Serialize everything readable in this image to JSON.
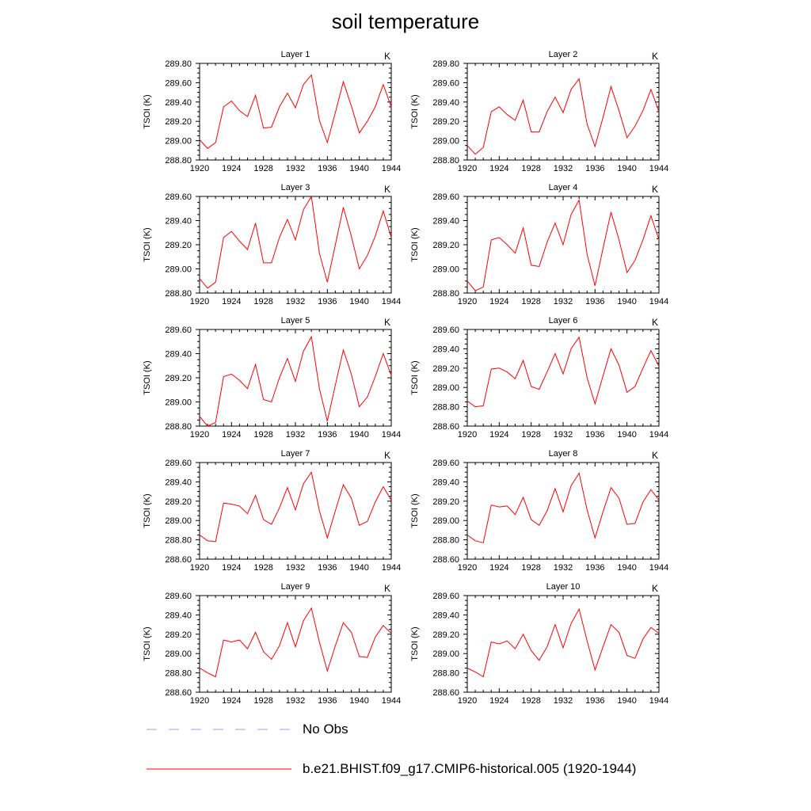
{
  "title": "soil temperature",
  "legend": {
    "items": [
      {
        "label": "No Obs",
        "color": "#9999ff",
        "style": "dashed"
      },
      {
        "label": "b.e21.BHIST.f09_g17.CMIP6-historical.005 (1920-1944)",
        "color": "#ff0000",
        "style": "solid"
      }
    ]
  },
  "chart_data": [
    {
      "type": "line",
      "title": "Layer 1",
      "units": "K",
      "ylabel": "TSOI  (K)",
      "xlim": [
        1920,
        1944
      ],
      "ylim": [
        288.8,
        289.8
      ],
      "xticks": [
        1920,
        1924,
        1928,
        1932,
        1936,
        1940,
        1944
      ],
      "yticks": [
        288.8,
        289.0,
        289.2,
        289.4,
        289.6,
        289.8
      ],
      "series": [
        {
          "color": "#ff0000",
          "x": [
            1920,
            1921,
            1922,
            1923,
            1924,
            1925,
            1926,
            1927,
            1928,
            1929,
            1930,
            1931,
            1932,
            1933,
            1934,
            1935,
            1936,
            1937,
            1938,
            1939,
            1940,
            1941,
            1942,
            1943,
            1944
          ],
          "values": [
            289.01,
            288.92,
            288.98,
            289.35,
            289.41,
            289.31,
            289.25,
            289.47,
            289.13,
            289.14,
            289.35,
            289.49,
            289.34,
            289.58,
            289.68,
            289.21,
            288.98,
            289.29,
            289.61,
            289.36,
            289.08,
            289.2,
            289.35,
            289.58,
            289.35
          ]
        }
      ]
    },
    {
      "type": "line",
      "title": "Layer 2",
      "units": "K",
      "ylabel": "TSOI  (K)",
      "xlim": [
        1920,
        1944
      ],
      "ylim": [
        288.8,
        289.8
      ],
      "xticks": [
        1920,
        1924,
        1928,
        1932,
        1936,
        1940,
        1944
      ],
      "yticks": [
        288.8,
        289.0,
        289.2,
        289.4,
        289.6,
        289.8
      ],
      "series": [
        {
          "color": "#ff0000",
          "x": [
            1920,
            1921,
            1922,
            1923,
            1924,
            1925,
            1926,
            1927,
            1928,
            1929,
            1930,
            1931,
            1932,
            1933,
            1934,
            1935,
            1936,
            1937,
            1938,
            1939,
            1940,
            1941,
            1942,
            1943,
            1944
          ],
          "values": [
            288.95,
            288.86,
            288.93,
            289.3,
            289.35,
            289.27,
            289.21,
            289.42,
            289.09,
            289.09,
            289.3,
            289.45,
            289.29,
            289.53,
            289.64,
            289.17,
            288.94,
            289.24,
            289.56,
            289.31,
            289.03,
            289.15,
            289.31,
            289.53,
            289.3
          ]
        }
      ]
    },
    {
      "type": "line",
      "title": "Layer 3",
      "units": "K",
      "ylabel": "TSOI  (K)",
      "xlim": [
        1920,
        1944
      ],
      "ylim": [
        288.8,
        289.6
      ],
      "xticks": [
        1920,
        1924,
        1928,
        1932,
        1936,
        1940,
        1944
      ],
      "yticks": [
        288.8,
        289.0,
        289.2,
        289.4,
        289.6
      ],
      "series": [
        {
          "color": "#ff0000",
          "x": [
            1920,
            1921,
            1922,
            1923,
            1924,
            1925,
            1926,
            1927,
            1928,
            1929,
            1930,
            1931,
            1932,
            1933,
            1934,
            1935,
            1936,
            1937,
            1938,
            1939,
            1940,
            1941,
            1942,
            1943,
            1944
          ],
          "values": [
            288.92,
            288.84,
            288.89,
            289.26,
            289.31,
            289.23,
            289.16,
            289.38,
            289.05,
            289.05,
            289.26,
            289.41,
            289.24,
            289.49,
            289.6,
            289.13,
            288.89,
            289.2,
            289.51,
            289.27,
            289.0,
            289.11,
            289.27,
            289.48,
            289.26
          ]
        }
      ]
    },
    {
      "type": "line",
      "title": "Layer 4",
      "units": "K",
      "ylabel": "TSOI  (K)",
      "xlim": [
        1920,
        1944
      ],
      "ylim": [
        288.8,
        289.6
      ],
      "xticks": [
        1920,
        1924,
        1928,
        1932,
        1936,
        1940,
        1944
      ],
      "yticks": [
        288.8,
        289.0,
        289.2,
        289.4,
        289.6
      ],
      "series": [
        {
          "color": "#ff0000",
          "x": [
            1920,
            1921,
            1922,
            1923,
            1924,
            1925,
            1926,
            1927,
            1928,
            1929,
            1930,
            1931,
            1932,
            1933,
            1934,
            1935,
            1936,
            1937,
            1938,
            1939,
            1940,
            1941,
            1942,
            1943,
            1944
          ],
          "values": [
            288.9,
            288.82,
            288.85,
            289.24,
            289.26,
            289.2,
            289.13,
            289.34,
            289.03,
            289.02,
            289.22,
            289.38,
            289.2,
            289.45,
            289.57,
            289.12,
            288.86,
            289.17,
            289.47,
            289.24,
            288.97,
            289.07,
            289.24,
            289.44,
            289.24
          ]
        }
      ]
    },
    {
      "type": "line",
      "title": "Layer 5",
      "units": "K",
      "ylabel": "TSOI  (K)",
      "xlim": [
        1920,
        1944
      ],
      "ylim": [
        288.8,
        289.6
      ],
      "xticks": [
        1920,
        1924,
        1928,
        1932,
        1936,
        1940,
        1944
      ],
      "yticks": [
        288.8,
        289.0,
        289.2,
        289.4,
        289.6
      ],
      "series": [
        {
          "color": "#ff0000",
          "x": [
            1920,
            1921,
            1922,
            1923,
            1924,
            1925,
            1926,
            1927,
            1928,
            1929,
            1930,
            1931,
            1932,
            1933,
            1934,
            1935,
            1936,
            1937,
            1938,
            1939,
            1940,
            1941,
            1942,
            1943,
            1944
          ],
          "values": [
            288.88,
            288.8,
            288.83,
            289.21,
            289.23,
            289.18,
            289.11,
            289.31,
            289.02,
            289.0,
            289.2,
            289.36,
            289.17,
            289.42,
            289.54,
            289.11,
            288.84,
            289.14,
            289.43,
            289.23,
            288.96,
            289.04,
            289.21,
            289.4,
            289.22
          ]
        }
      ]
    },
    {
      "type": "line",
      "title": "Layer 6",
      "units": "K",
      "ylabel": "TSOI  (K)",
      "xlim": [
        1920,
        1944
      ],
      "ylim": [
        288.6,
        289.6
      ],
      "xticks": [
        1920,
        1924,
        1928,
        1932,
        1936,
        1940,
        1944
      ],
      "yticks": [
        288.6,
        288.8,
        289.0,
        289.2,
        289.4,
        289.6
      ],
      "series": [
        {
          "color": "#ff0000",
          "x": [
            1920,
            1921,
            1922,
            1923,
            1924,
            1925,
            1926,
            1927,
            1928,
            1929,
            1930,
            1931,
            1932,
            1933,
            1934,
            1935,
            1936,
            1937,
            1938,
            1939,
            1940,
            1941,
            1942,
            1943,
            1944
          ],
          "values": [
            288.86,
            288.8,
            288.81,
            289.19,
            289.2,
            289.16,
            289.09,
            289.28,
            289.01,
            288.98,
            289.16,
            289.35,
            289.14,
            289.4,
            289.52,
            289.1,
            288.83,
            289.12,
            289.4,
            289.23,
            288.95,
            289.01,
            289.2,
            289.38,
            289.22
          ]
        }
      ]
    },
    {
      "type": "line",
      "title": "Layer 7",
      "units": "K",
      "ylabel": "TSOI  (K)",
      "xlim": [
        1920,
        1944
      ],
      "ylim": [
        288.6,
        289.6
      ],
      "xticks": [
        1920,
        1924,
        1928,
        1932,
        1936,
        1940,
        1944
      ],
      "yticks": [
        288.6,
        288.8,
        289.0,
        289.2,
        289.4,
        289.6
      ],
      "series": [
        {
          "color": "#ff0000",
          "x": [
            1920,
            1921,
            1922,
            1923,
            1924,
            1925,
            1926,
            1927,
            1928,
            1929,
            1930,
            1931,
            1932,
            1933,
            1934,
            1935,
            1936,
            1937,
            1938,
            1939,
            1940,
            1941,
            1942,
            1943,
            1944
          ],
          "values": [
            288.85,
            288.79,
            288.78,
            289.18,
            289.17,
            289.15,
            289.07,
            289.26,
            289.01,
            288.96,
            289.13,
            289.34,
            289.11,
            289.38,
            289.5,
            289.1,
            288.82,
            289.1,
            289.37,
            289.23,
            288.95,
            288.99,
            289.19,
            289.35,
            289.21
          ]
        }
      ]
    },
    {
      "type": "line",
      "title": "Layer 8",
      "units": "K",
      "ylabel": "TSOI  (K)",
      "xlim": [
        1920,
        1944
      ],
      "ylim": [
        288.6,
        289.6
      ],
      "xticks": [
        1920,
        1924,
        1928,
        1932,
        1936,
        1940,
        1944
      ],
      "yticks": [
        288.6,
        288.8,
        289.0,
        289.2,
        289.4,
        289.6
      ],
      "series": [
        {
          "color": "#ff0000",
          "x": [
            1920,
            1921,
            1922,
            1923,
            1924,
            1925,
            1926,
            1927,
            1928,
            1929,
            1930,
            1931,
            1932,
            1933,
            1934,
            1935,
            1936,
            1937,
            1938,
            1939,
            1940,
            1941,
            1942,
            1943,
            1944
          ],
          "values": [
            288.85,
            288.79,
            288.77,
            289.16,
            289.14,
            289.15,
            289.06,
            289.24,
            289.01,
            288.95,
            289.1,
            289.33,
            289.09,
            289.36,
            289.49,
            289.11,
            288.82,
            289.09,
            289.34,
            289.23,
            288.96,
            288.97,
            289.19,
            289.32,
            289.21
          ]
        }
      ]
    },
    {
      "type": "line",
      "title": "Layer 9",
      "units": "K",
      "ylabel": "TSOI  (K)",
      "xlim": [
        1920,
        1944
      ],
      "ylim": [
        288.6,
        289.6
      ],
      "xticks": [
        1920,
        1924,
        1928,
        1932,
        1936,
        1940,
        1944
      ],
      "yticks": [
        288.6,
        288.8,
        289.0,
        289.2,
        289.4,
        289.6
      ],
      "series": [
        {
          "color": "#ff0000",
          "x": [
            1920,
            1921,
            1922,
            1923,
            1924,
            1925,
            1926,
            1927,
            1928,
            1929,
            1930,
            1931,
            1932,
            1933,
            1934,
            1935,
            1936,
            1937,
            1938,
            1939,
            1940,
            1941,
            1942,
            1943,
            1944
          ],
          "values": [
            288.85,
            288.8,
            288.76,
            289.14,
            289.12,
            289.14,
            289.05,
            289.22,
            289.02,
            288.94,
            289.08,
            289.32,
            289.07,
            289.34,
            289.47,
            289.12,
            288.82,
            289.08,
            289.32,
            289.22,
            288.97,
            288.96,
            289.17,
            289.29,
            289.21
          ]
        }
      ]
    },
    {
      "type": "line",
      "title": "Layer 10",
      "units": "K",
      "ylabel": "TSOI  (K)",
      "xlim": [
        1920,
        1944
      ],
      "ylim": [
        288.6,
        289.6
      ],
      "xticks": [
        1920,
        1924,
        1928,
        1932,
        1936,
        1940,
        1944
      ],
      "yticks": [
        288.6,
        288.8,
        289.0,
        289.2,
        289.4,
        289.6
      ],
      "series": [
        {
          "color": "#ff0000",
          "x": [
            1920,
            1921,
            1922,
            1923,
            1924,
            1925,
            1926,
            1927,
            1928,
            1929,
            1930,
            1931,
            1932,
            1933,
            1934,
            1935,
            1936,
            1937,
            1938,
            1939,
            1940,
            1941,
            1942,
            1943,
            1944
          ],
          "values": [
            288.85,
            288.81,
            288.76,
            289.12,
            289.1,
            289.13,
            289.05,
            289.2,
            289.03,
            288.93,
            289.07,
            289.3,
            289.06,
            289.31,
            289.46,
            289.13,
            288.83,
            289.07,
            289.3,
            289.22,
            288.98,
            288.95,
            289.15,
            289.27,
            289.21
          ]
        }
      ]
    }
  ]
}
